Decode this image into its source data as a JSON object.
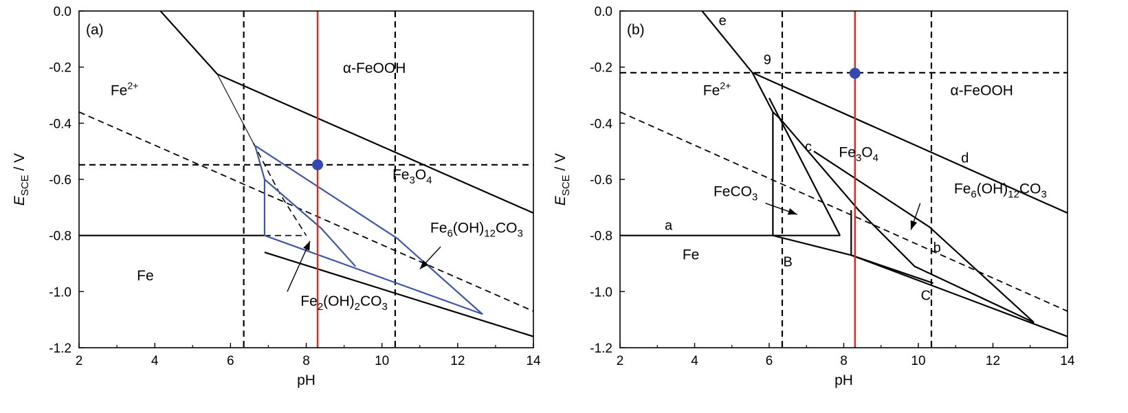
{
  "colors": {
    "boundary": "#000000",
    "blue_region": "#3f55a8",
    "marker": "#3547b0",
    "red_line": "#e0281e"
  },
  "chart_data": [
    {
      "type": "line",
      "panel_label": "(a)",
      "xlabel": "pH",
      "ylabel_main": "E",
      "ylabel_sub": "SCE",
      "ylabel_unit": " / V",
      "xlim": [
        2,
        14
      ],
      "ylim": [
        -1.2,
        0.0
      ],
      "xticks": [
        2,
        4,
        6,
        8,
        10,
        12,
        14
      ],
      "xtick_labels": [
        "2",
        "4",
        "6",
        "8",
        "10",
        "12",
        "14"
      ],
      "yticks": [
        0.0,
        -0.2,
        -0.4,
        -0.6,
        -0.8,
        -1.0,
        -1.2
      ],
      "ytick_labels": [
        "0.0",
        "-0.2",
        "-0.4",
        "-0.6",
        "-0.8",
        "-1.0",
        "-1.2"
      ],
      "lines": [
        {
          "style": "solid",
          "width": 2.2,
          "points": [
            [
              4.15,
              0.0
            ],
            [
              5.65,
              -0.225
            ]
          ]
        },
        {
          "style": "solid",
          "width": 2.2,
          "points": [
            [
              5.65,
              -0.225
            ],
            [
              14.0,
              -0.72
            ]
          ]
        },
        {
          "style": "solid",
          "width": 1.1,
          "points": [
            [
              5.65,
              -0.225
            ],
            [
              6.6,
              -0.47
            ]
          ]
        },
        {
          "style": "solid",
          "width": 2.2,
          "points": [
            [
              2.0,
              -0.8
            ],
            [
              6.9,
              -0.8
            ]
          ]
        },
        {
          "style": "solid",
          "width": 2.2,
          "points": [
            [
              6.9,
              -0.86
            ],
            [
              14.0,
              -1.16
            ]
          ]
        },
        {
          "style": "dashed",
          "width": 1.8,
          "points": [
            [
              2.0,
              -0.36
            ],
            [
              14.0,
              -1.07
            ]
          ]
        },
        {
          "style": "dashed",
          "width": 2.2,
          "points": [
            [
              2.0,
              -0.548
            ],
            [
              14.0,
              -0.548
            ]
          ]
        },
        {
          "style": "dashed",
          "width": 2.2,
          "points": [
            [
              6.35,
              0.0
            ],
            [
              6.35,
              -1.2
            ]
          ]
        },
        {
          "style": "dashed",
          "width": 2.2,
          "points": [
            [
              10.35,
              0.0
            ],
            [
              10.35,
              -1.2
            ]
          ]
        },
        {
          "style": "dashed",
          "width": 1.6,
          "points": [
            [
              6.6,
              -0.47
            ],
            [
              7.3,
              -0.65
            ],
            [
              8.0,
              -0.8
            ]
          ]
        },
        {
          "style": "dashed",
          "width": 1.6,
          "points": [
            [
              6.9,
              -0.8
            ],
            [
              8.0,
              -0.8
            ]
          ]
        }
      ],
      "regions": [
        {
          "points": [
            [
              6.65,
              -0.48
            ],
            [
              6.9,
              -0.6
            ],
            [
              6.9,
              -0.8
            ],
            [
              12.65,
              -1.08
            ],
            [
              10.4,
              -0.81
            ],
            [
              6.65,
              -0.48
            ]
          ]
        },
        {
          "points": [
            [
              6.9,
              -0.6
            ],
            [
              8.4,
              -0.775
            ],
            [
              9.3,
              -0.91
            ]
          ]
        }
      ],
      "vertical_marker": {
        "x": 8.3
      },
      "points": [
        {
          "x": 8.3,
          "y": -0.548
        }
      ],
      "region_labels": [
        {
          "main": "Fe",
          "sup": "2+",
          "x": 3.2,
          "y": -0.3
        },
        {
          "main": "α-FeOOH",
          "x": 9.8,
          "y": -0.22
        },
        {
          "main": "Fe",
          "sub": "3",
          "rest": "O",
          "sub2": "4",
          "x": 10.8,
          "y": -0.6
        },
        {
          "main": "Fe",
          "sub": "6",
          "rest": "(OH)",
          "sub2": "12",
          "rest2": "CO",
          "sub3": "3",
          "x": 12.5,
          "y": -0.79
        },
        {
          "main": "Fe",
          "x": 3.75,
          "y": -0.96
        },
        {
          "main": "Fe",
          "sub": "2",
          "rest": "(OH)",
          "sub2": "2",
          "rest2": "CO",
          "sub3": "3",
          "x": 9.0,
          "y": -1.05
        }
      ],
      "arrows": [
        {
          "from": [
            7.5,
            -1.0
          ],
          "to": [
            8.1,
            -0.82
          ]
        },
        {
          "from": [
            11.55,
            -0.84
          ],
          "to": [
            11.0,
            -0.92
          ]
        }
      ],
      "marker_labels": []
    },
    {
      "type": "line",
      "panel_label": "(b)",
      "xlabel": "pH",
      "ylabel_main": "E",
      "ylabel_sub": "SCE",
      "ylabel_unit": " / V",
      "xlim": [
        2,
        14
      ],
      "ylim": [
        -1.2,
        0.0
      ],
      "xticks": [
        2,
        4,
        6,
        8,
        10,
        12,
        14
      ],
      "xtick_labels": [
        "2",
        "4",
        "6",
        "8",
        "10",
        "12",
        "14"
      ],
      "yticks": [
        0.0,
        -0.2,
        -0.4,
        -0.6,
        -0.8,
        -1.0,
        -1.2
      ],
      "ytick_labels": [
        "0.0",
        "-0.2",
        "-0.4",
        "-0.6",
        "-0.8",
        "-1.0",
        "-1.2"
      ],
      "lines": [
        {
          "style": "solid",
          "width": 2.2,
          "points": [
            [
              4.2,
              0.0
            ],
            [
              5.55,
              -0.22
            ],
            [
              6.1,
              -0.36
            ],
            [
              6.3,
              -0.385
            ],
            [
              8.4,
              -0.71
            ],
            [
              9.9,
              -0.91
            ],
            [
              13.1,
              -1.11
            ]
          ]
        },
        {
          "style": "solid",
          "width": 2.2,
          "points": [
            [
              5.55,
              -0.22
            ],
            [
              14.0,
              -0.72
            ]
          ]
        },
        {
          "style": "solid",
          "width": 2.2,
          "points": [
            [
              2.0,
              -0.8
            ],
            [
              6.1,
              -0.8
            ]
          ]
        },
        {
          "style": "solid",
          "width": 2.2,
          "points": [
            [
              6.1,
              -0.8
            ],
            [
              8.2,
              -0.87
            ],
            [
              14.0,
              -1.16
            ]
          ]
        },
        {
          "style": "solid",
          "width": 2.2,
          "points": [
            [
              6.1,
              -0.36
            ],
            [
              6.1,
              -0.8
            ]
          ]
        },
        {
          "style": "solid",
          "width": 2.2,
          "points": [
            [
              6.0,
              -0.31
            ],
            [
              7.9,
              -0.8
            ]
          ]
        },
        {
          "style": "solid",
          "width": 2.2,
          "points": [
            [
              6.1,
              -0.8
            ],
            [
              7.9,
              -0.8
            ]
          ]
        },
        {
          "style": "solid",
          "width": 2.2,
          "points": [
            [
              7.2,
              -0.5
            ],
            [
              10.3,
              -0.77
            ],
            [
              13.1,
              -1.11
            ]
          ]
        },
        {
          "style": "solid",
          "width": 2.2,
          "points": [
            [
              8.2,
              -0.71
            ],
            [
              8.2,
              -0.87
            ]
          ]
        },
        {
          "style": "solid",
          "width": 2.2,
          "points": [
            [
              8.2,
              -0.87
            ],
            [
              10.4,
              -0.97
            ]
          ]
        },
        {
          "style": "dashed",
          "width": 1.8,
          "points": [
            [
              2.0,
              -0.36
            ],
            [
              14.0,
              -1.07
            ]
          ]
        },
        {
          "style": "dashed",
          "width": 2.2,
          "points": [
            [
              2.0,
              -0.22
            ],
            [
              14.0,
              -0.22
            ]
          ]
        },
        {
          "style": "dashed",
          "width": 2.2,
          "points": [
            [
              6.35,
              0.0
            ],
            [
              6.35,
              -1.2
            ]
          ]
        },
        {
          "style": "dashed",
          "width": 2.2,
          "points": [
            [
              10.35,
              0.0
            ],
            [
              10.35,
              -1.2
            ]
          ]
        }
      ],
      "regions": [],
      "vertical_marker": {
        "x": 8.3
      },
      "points": [
        {
          "x": 8.3,
          "y": -0.222
        }
      ],
      "region_labels": [
        {
          "main": "Fe",
          "sup": "2+",
          "x": 4.6,
          "y": -0.3
        },
        {
          "main": "α-FeOOH",
          "x": 11.7,
          "y": -0.3
        },
        {
          "main": "Fe",
          "sub": "3",
          "rest": "O",
          "sub2": "4",
          "x": 8.4,
          "y": -0.52
        },
        {
          "main": "Fe",
          "sub": "6",
          "rest": "(OH)",
          "sub2": "12",
          "rest2": "CO",
          "sub3": "3",
          "x": 12.2,
          "y": -0.65
        },
        {
          "main": "FeCO",
          "sub": "3",
          "x": 5.1,
          "y": -0.66
        },
        {
          "main": "Fe",
          "x": 3.9,
          "y": -0.885
        }
      ],
      "arrows": [
        {
          "from": [
            5.9,
            -0.685
          ],
          "to": [
            6.75,
            -0.725
          ]
        },
        {
          "from": [
            10.05,
            -0.685
          ],
          "to": [
            9.8,
            -0.78
          ]
        }
      ],
      "marker_labels": [
        {
          "text": "e",
          "x": 4.75,
          "y": -0.05
        },
        {
          "text": "9",
          "x": 5.95,
          "y": -0.19
        },
        {
          "text": "c",
          "x": 7.05,
          "y": -0.5
        },
        {
          "text": "d",
          "x": 11.25,
          "y": -0.54
        },
        {
          "text": "a",
          "x": 3.3,
          "y": -0.78
        },
        {
          "text": "b",
          "x": 10.5,
          "y": -0.86
        },
        {
          "text": "B",
          "x": 6.5,
          "y": -0.91
        },
        {
          "text": "C",
          "x": 10.2,
          "y": -1.03
        }
      ]
    }
  ]
}
